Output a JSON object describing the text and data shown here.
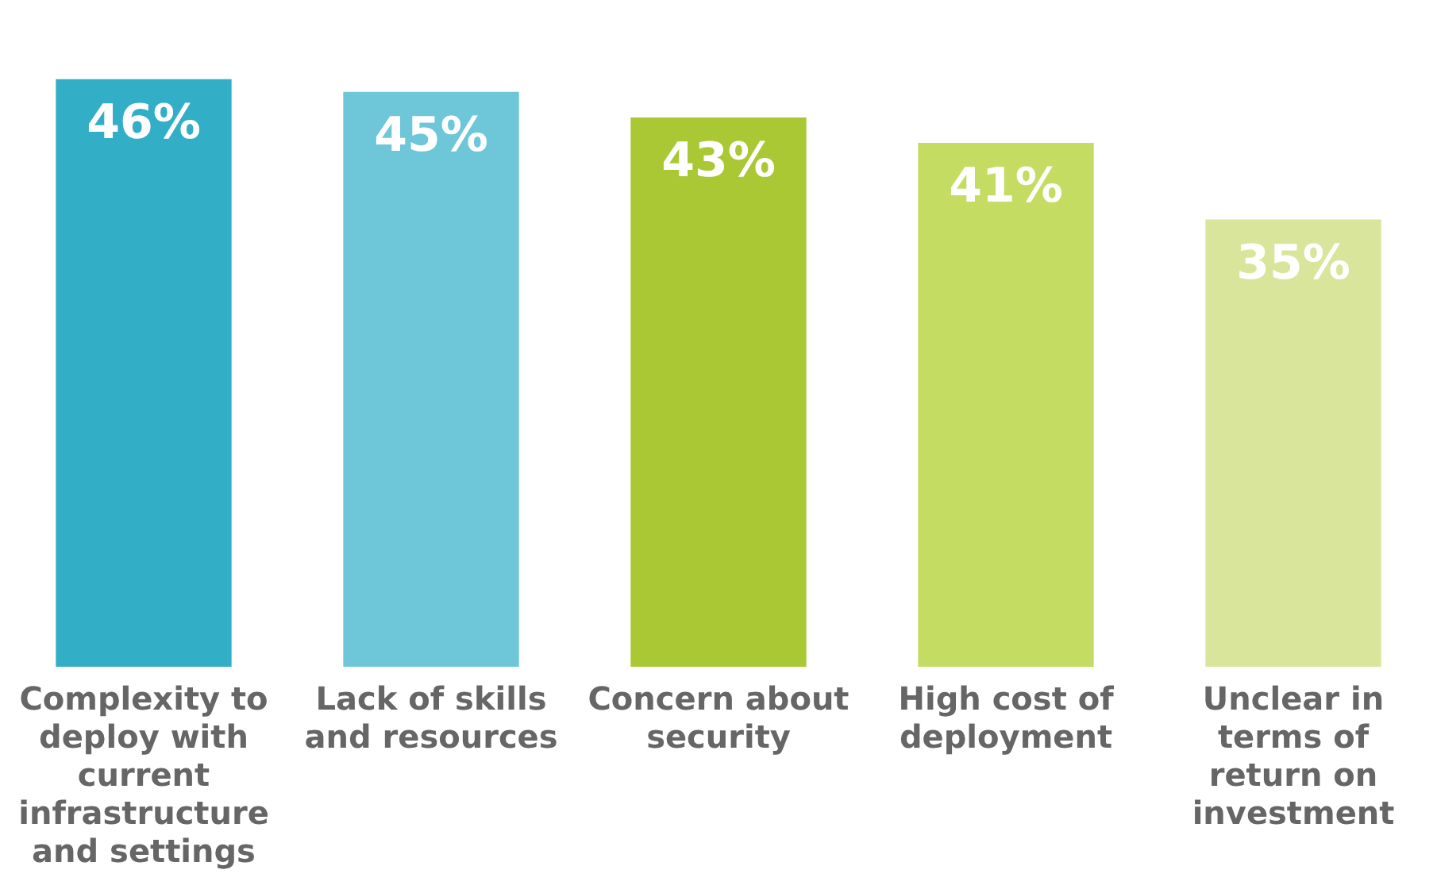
{
  "chart_data": {
    "type": "bar",
    "categories": [
      "Complexity to deploy with current infrastructure and settings",
      "Lack of skills and resources",
      "Concern about security",
      "High cost of deployment",
      "Unclear in terms of return on investment"
    ],
    "values": [
      46,
      45,
      43,
      41,
      35
    ],
    "colors": [
      "#33aec7",
      "#6dc7d8",
      "#a9c833",
      "#c4dc62",
      "#d9e59a"
    ],
    "value_labels": [
      "46%",
      "45%",
      "43%",
      "41%",
      "35%"
    ],
    "grid": false,
    "legend": false,
    "tick_labels": "x"
  }
}
